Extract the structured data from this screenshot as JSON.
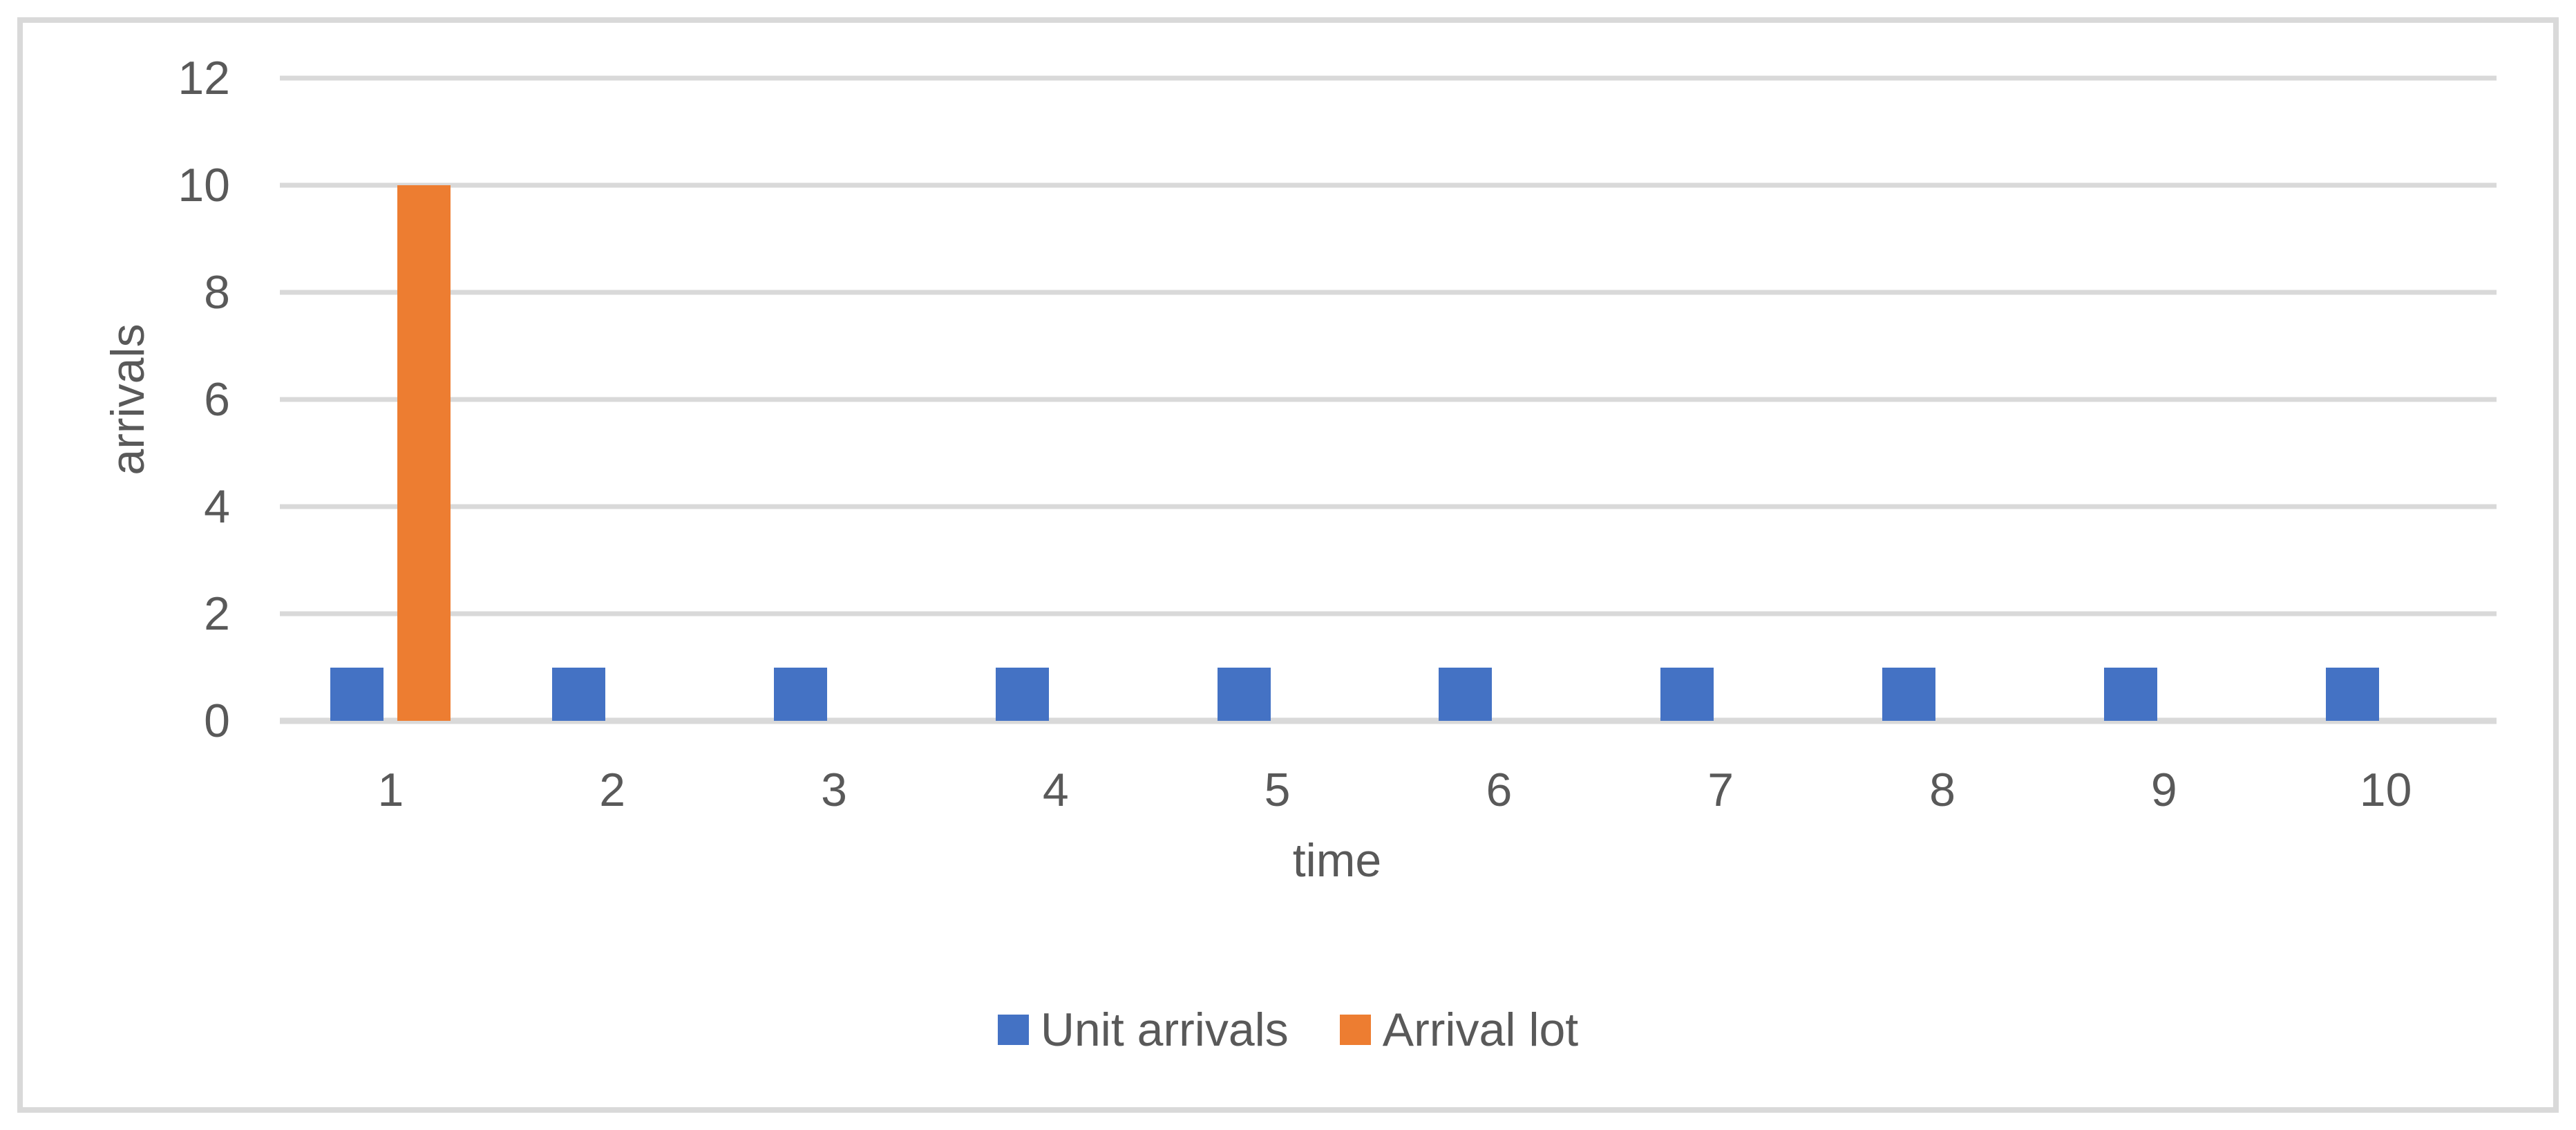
{
  "chart_data": {
    "type": "bar",
    "title": "",
    "xlabel": "time",
    "ylabel": "arrivals",
    "categories": [
      "1",
      "2",
      "3",
      "4",
      "5",
      "6",
      "7",
      "8",
      "9",
      "10"
    ],
    "series": [
      {
        "name": "Unit arrivals",
        "color": "#4472C4",
        "values": [
          1,
          1,
          1,
          1,
          1,
          1,
          1,
          1,
          1,
          1
        ]
      },
      {
        "name": "Arrival lot",
        "color": "#ED7D31",
        "values": [
          10,
          0,
          0,
          0,
          0,
          0,
          0,
          0,
          0,
          0
        ]
      }
    ],
    "ylim": [
      0,
      12
    ],
    "yticks": [
      0,
      2,
      4,
      6,
      8,
      10,
      12
    ],
    "grid": "horizontal",
    "legend_position": "bottom"
  },
  "colors": {
    "gridline": "#D9D9D9",
    "axis_text": "#595959",
    "figure_border": "#D9D9D9",
    "background": "#FFFFFF"
  }
}
